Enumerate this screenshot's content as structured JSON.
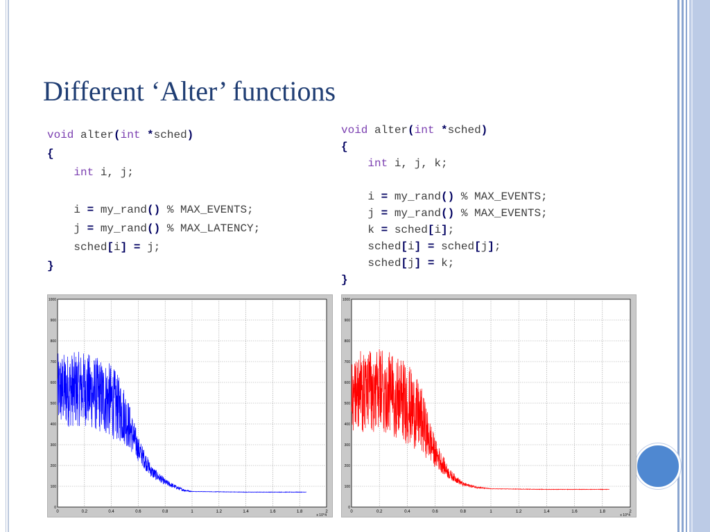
{
  "slide": {
    "title": "Different ‘Alter’ functions",
    "accent_color": "#1f3d73",
    "circle_color": "#4f88d1"
  },
  "code_left": {
    "lines": [
      [
        {
          "t": "void",
          "c": "kw"
        },
        {
          "t": " alter"
        },
        {
          "t": "(",
          "c": "op"
        },
        {
          "t": "int",
          "c": "kw"
        },
        {
          "t": " "
        },
        {
          "t": "*",
          "c": "op"
        },
        {
          "t": "sched"
        },
        {
          "t": ")",
          "c": "op"
        }
      ],
      [
        {
          "t": "{",
          "c": "op"
        }
      ],
      [
        {
          "t": "    "
        },
        {
          "t": "int",
          "c": "kw"
        },
        {
          "t": " i, j;"
        }
      ],
      [
        {
          "t": ""
        }
      ],
      [
        {
          "t": "    i "
        },
        {
          "t": "=",
          "c": "op"
        },
        {
          "t": " my_rand"
        },
        {
          "t": "()",
          "c": "op"
        },
        {
          "t": " % MAX_EVENTS;"
        }
      ],
      [
        {
          "t": "    j "
        },
        {
          "t": "=",
          "c": "op"
        },
        {
          "t": " my_rand"
        },
        {
          "t": "()",
          "c": "op"
        },
        {
          "t": " % MAX_LATENCY;"
        }
      ],
      [
        {
          "t": "    sched"
        },
        {
          "t": "[",
          "c": "op"
        },
        {
          "t": "i"
        },
        {
          "t": "]",
          "c": "op"
        },
        {
          "t": " "
        },
        {
          "t": "=",
          "c": "op"
        },
        {
          "t": " j;"
        }
      ],
      [
        {
          "t": "}",
          "c": "op"
        }
      ]
    ]
  },
  "code_right": {
    "lines": [
      [
        {
          "t": "void",
          "c": "kw"
        },
        {
          "t": " alter"
        },
        {
          "t": "(",
          "c": "op"
        },
        {
          "t": "int",
          "c": "kw"
        },
        {
          "t": " "
        },
        {
          "t": "*",
          "c": "op"
        },
        {
          "t": "sched"
        },
        {
          "t": ")",
          "c": "op"
        }
      ],
      [
        {
          "t": "{",
          "c": "op"
        }
      ],
      [
        {
          "t": "    "
        },
        {
          "t": "int",
          "c": "kw"
        },
        {
          "t": " i, j, k;"
        }
      ],
      [
        {
          "t": ""
        }
      ],
      [
        {
          "t": "    i "
        },
        {
          "t": "=",
          "c": "op"
        },
        {
          "t": " my_rand"
        },
        {
          "t": "()",
          "c": "op"
        },
        {
          "t": " % MAX_EVENTS;"
        }
      ],
      [
        {
          "t": "    j "
        },
        {
          "t": "=",
          "c": "op"
        },
        {
          "t": " my_rand"
        },
        {
          "t": "()",
          "c": "op"
        },
        {
          "t": " % MAX_EVENTS;"
        }
      ],
      [
        {
          "t": "    k "
        },
        {
          "t": "=",
          "c": "op"
        },
        {
          "t": " sched"
        },
        {
          "t": "[",
          "c": "op"
        },
        {
          "t": "i"
        },
        {
          "t": "]",
          "c": "op"
        },
        {
          "t": ";"
        }
      ],
      [
        {
          "t": "    sched"
        },
        {
          "t": "[",
          "c": "op"
        },
        {
          "t": "i"
        },
        {
          "t": "]",
          "c": "op"
        },
        {
          "t": " "
        },
        {
          "t": "=",
          "c": "op"
        },
        {
          "t": " sched"
        },
        {
          "t": "[",
          "c": "op"
        },
        {
          "t": "j"
        },
        {
          "t": "]",
          "c": "op"
        },
        {
          "t": ";"
        }
      ],
      [
        {
          "t": "    sched"
        },
        {
          "t": "[",
          "c": "op"
        },
        {
          "t": "j"
        },
        {
          "t": "]",
          "c": "op"
        },
        {
          "t": " "
        },
        {
          "t": "=",
          "c": "op"
        },
        {
          "t": " k;"
        }
      ],
      [
        {
          "t": "}",
          "c": "op"
        }
      ]
    ]
  },
  "chart_data": [
    {
      "type": "line",
      "color": "#0000ff",
      "xlim": [
        0,
        20000
      ],
      "ylim": [
        0,
        1000
      ],
      "xticks": [
        "0",
        "0.2",
        "0.4",
        "0.6",
        "0.8",
        "1",
        "1.2",
        "1.4",
        "1.6",
        "1.8",
        "2"
      ],
      "yticks": [
        "0",
        "100",
        "200",
        "300",
        "400",
        "500",
        "600",
        "700",
        "800",
        "900",
        "1000"
      ],
      "x_multiplier": "x 10^4",
      "grid": true,
      "series": [
        {
          "values_summary": [
            [
              0,
              560
            ],
            [
              2000,
              570
            ],
            [
              3000,
              540
            ],
            [
              4000,
              510
            ],
            [
              5000,
              440
            ],
            [
              6000,
              280
            ],
            [
              7000,
              170
            ],
            [
              8000,
              120
            ],
            [
              9000,
              90
            ],
            [
              9500,
              80
            ],
            [
              10000,
              75
            ],
            [
              14000,
              72
            ],
            [
              18500,
              72
            ]
          ],
          "noise": [
            [
              0,
              180
            ],
            [
              4000,
              180
            ],
            [
              5000,
              140
            ],
            [
              6000,
              60
            ],
            [
              7000,
              30
            ],
            [
              8000,
              15
            ],
            [
              9500,
              5
            ],
            [
              10000,
              1
            ],
            [
              18500,
              1
            ]
          ]
        }
      ]
    },
    {
      "type": "line",
      "color": "#ff0000",
      "xlim": [
        0,
        20000
      ],
      "ylim": [
        0,
        1000
      ],
      "xticks": [
        "0",
        "0.2",
        "0.4",
        "0.6",
        "0.8",
        "1",
        "1.2",
        "1.4",
        "1.6",
        "1.8",
        "2"
      ],
      "yticks": [
        "0",
        "100",
        "200",
        "300",
        "400",
        "500",
        "600",
        "700",
        "800",
        "900",
        "1000"
      ],
      "x_multiplier": "x 10^4",
      "grid": true,
      "series": [
        {
          "values_summary": [
            [
              0,
              560
            ],
            [
              2000,
              560
            ],
            [
              3000,
              540
            ],
            [
              4000,
              500
            ],
            [
              5000,
              420
            ],
            [
              6000,
              260
            ],
            [
              7000,
              160
            ],
            [
              8000,
              110
            ],
            [
              9000,
              95
            ],
            [
              10000,
              88
            ],
            [
              14000,
              85
            ],
            [
              18500,
              85
            ]
          ],
          "noise": [
            [
              0,
              200
            ],
            [
              4000,
              200
            ],
            [
              5000,
              160
            ],
            [
              6000,
              70
            ],
            [
              7000,
              25
            ],
            [
              8000,
              10
            ],
            [
              9000,
              4
            ],
            [
              10000,
              1
            ],
            [
              18500,
              1
            ]
          ]
        }
      ]
    }
  ]
}
